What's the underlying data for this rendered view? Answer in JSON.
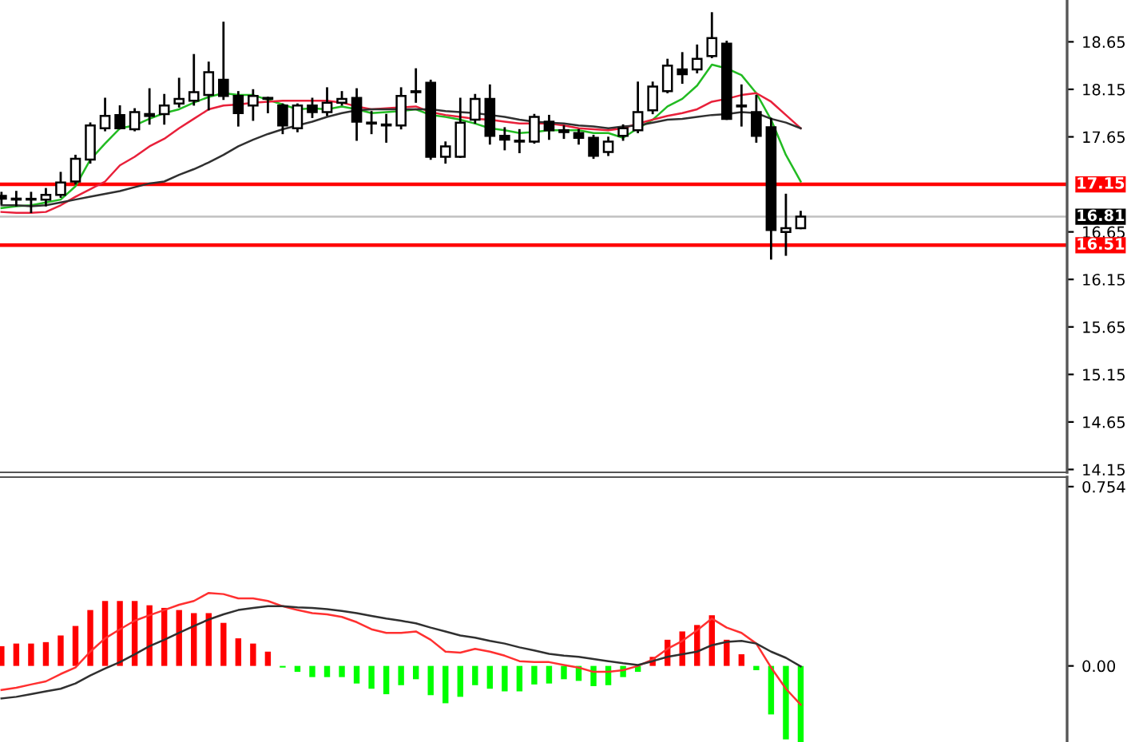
{
  "chart_data": [
    {
      "type": "candlestick",
      "categories": [
        null,
        null,
        null,
        null,
        null,
        null,
        null,
        null,
        null,
        null,
        null,
        null,
        null,
        null,
        null,
        null,
        null,
        null,
        null,
        null,
        null,
        null,
        null,
        null,
        null,
        null,
        null,
        null,
        null,
        null,
        null,
        null,
        null,
        null,
        null,
        null,
        null,
        null,
        null,
        null,
        null,
        null,
        null,
        null,
        null,
        null,
        null,
        null,
        null,
        null,
        null,
        null,
        null,
        null,
        null
      ],
      "ohlc": [
        [
          17.03,
          17.06,
          16.95,
          17.0
        ],
        [
          16.99,
          17.07,
          16.93,
          17.0
        ],
        [
          16.99,
          17.06,
          16.86,
          16.99
        ],
        [
          16.99,
          17.1,
          16.93,
          17.04
        ],
        [
          17.04,
          17.27,
          17.02,
          17.17
        ],
        [
          17.18,
          17.45,
          17.16,
          17.42
        ],
        [
          17.41,
          17.79,
          17.38,
          17.77
        ],
        [
          17.74,
          18.05,
          17.72,
          17.87
        ],
        [
          17.88,
          17.97,
          17.74,
          17.74
        ],
        [
          17.73,
          17.94,
          17.72,
          17.91
        ],
        [
          17.89,
          18.15,
          17.79,
          17.87
        ],
        [
          17.89,
          18.09,
          17.79,
          17.98
        ],
        [
          18.0,
          18.26,
          17.97,
          18.05
        ],
        [
          18.03,
          18.51,
          17.99,
          18.12
        ],
        [
          18.09,
          18.43,
          17.94,
          18.33
        ],
        [
          18.25,
          18.85,
          18.05,
          18.08
        ],
        [
          18.08,
          18.12,
          17.77,
          17.9
        ],
        [
          17.98,
          18.14,
          17.83,
          18.08
        ],
        [
          18.06,
          18.06,
          17.91,
          18.05
        ],
        [
          17.98,
          17.99,
          17.69,
          17.77
        ],
        [
          17.74,
          17.99,
          17.71,
          17.98
        ],
        [
          17.98,
          18.05,
          17.86,
          17.91
        ],
        [
          17.91,
          18.16,
          17.88,
          18.01
        ],
        [
          18.01,
          18.12,
          17.99,
          18.05
        ],
        [
          18.06,
          18.15,
          17.62,
          17.81
        ],
        [
          17.8,
          17.91,
          17.69,
          17.79
        ],
        [
          17.78,
          17.88,
          17.6,
          17.77
        ],
        [
          17.77,
          18.16,
          17.74,
          18.08
        ],
        [
          18.13,
          18.36,
          18.02,
          18.12
        ],
        [
          18.22,
          18.24,
          17.42,
          17.44
        ],
        [
          17.44,
          17.59,
          17.38,
          17.55
        ],
        [
          17.44,
          18.05,
          17.44,
          17.8
        ],
        [
          17.83,
          18.09,
          17.8,
          18.05
        ],
        [
          18.05,
          18.19,
          17.58,
          17.66
        ],
        [
          17.66,
          17.74,
          17.52,
          17.62
        ],
        [
          17.61,
          17.72,
          17.49,
          17.6
        ],
        [
          17.6,
          17.88,
          17.59,
          17.86
        ],
        [
          17.81,
          17.87,
          17.63,
          17.72
        ],
        [
          17.72,
          17.76,
          17.64,
          17.7
        ],
        [
          17.69,
          17.72,
          17.58,
          17.64
        ],
        [
          17.64,
          17.66,
          17.43,
          17.45
        ],
        [
          17.49,
          17.64,
          17.46,
          17.6
        ],
        [
          17.66,
          17.77,
          17.62,
          17.74
        ],
        [
          17.72,
          18.22,
          17.7,
          17.91
        ],
        [
          17.93,
          18.22,
          17.9,
          18.18
        ],
        [
          18.13,
          18.46,
          18.12,
          18.4
        ],
        [
          18.36,
          18.53,
          18.22,
          18.31
        ],
        [
          18.36,
          18.61,
          18.33,
          18.47
        ],
        [
          18.5,
          18.95,
          18.49,
          18.69
        ],
        [
          18.63,
          18.65,
          17.84,
          17.84
        ],
        [
          17.98,
          18.19,
          17.77,
          17.97
        ],
        [
          17.91,
          18.08,
          17.6,
          17.66
        ],
        [
          17.75,
          17.84,
          16.37,
          16.67
        ],
        [
          16.65,
          17.04,
          16.41,
          16.69
        ],
        [
          16.69,
          16.86,
          16.69,
          16.81
        ]
      ],
      "series": [
        {
          "type": "line",
          "color": "#22bb22",
          "values": [
            16.9,
            16.92,
            16.93,
            16.96,
            16.99,
            17.13,
            17.41,
            17.58,
            17.74,
            17.77,
            17.84,
            17.9,
            17.94,
            18.01,
            18.07,
            18.11,
            18.09,
            18.09,
            18.04,
            17.99,
            17.94,
            17.95,
            17.94,
            17.97,
            17.94,
            17.9,
            17.91,
            17.92,
            17.94,
            17.88,
            17.86,
            17.83,
            17.79,
            17.74,
            17.72,
            17.69,
            17.7,
            17.72,
            17.72,
            17.72,
            17.69,
            17.69,
            17.64,
            17.74,
            17.83,
            17.97,
            18.05,
            18.19,
            18.41,
            18.37,
            18.3,
            18.11,
            17.83,
            17.46,
            17.18
          ]
        },
        {
          "type": "line",
          "color": "#e8203a",
          "values": [
            16.86,
            16.85,
            16.85,
            16.86,
            16.93,
            17.02,
            17.1,
            17.18,
            17.35,
            17.44,
            17.55,
            17.63,
            17.74,
            17.84,
            17.94,
            17.98,
            17.99,
            18.01,
            18.02,
            18.03,
            18.03,
            18.03,
            18.03,
            18.01,
            17.97,
            17.94,
            17.95,
            17.96,
            17.97,
            17.91,
            17.88,
            17.86,
            17.84,
            17.83,
            17.81,
            17.79,
            17.79,
            17.79,
            17.77,
            17.74,
            17.73,
            17.72,
            17.74,
            17.79,
            17.83,
            17.87,
            17.9,
            17.94,
            18.02,
            18.05,
            18.09,
            18.11,
            18.02,
            17.88,
            17.74
          ]
        },
        {
          "type": "line",
          "color": "#303030",
          "values": [
            16.93,
            16.93,
            16.92,
            16.93,
            16.96,
            16.99,
            17.02,
            17.05,
            17.08,
            17.12,
            17.16,
            17.18,
            17.25,
            17.31,
            17.38,
            17.46,
            17.55,
            17.62,
            17.68,
            17.73,
            17.77,
            17.81,
            17.86,
            17.9,
            17.93,
            17.94,
            17.94,
            17.94,
            17.94,
            17.94,
            17.92,
            17.91,
            17.9,
            17.88,
            17.86,
            17.83,
            17.81,
            17.8,
            17.79,
            17.77,
            17.76,
            17.74,
            17.76,
            17.77,
            17.8,
            17.83,
            17.84,
            17.86,
            17.88,
            17.89,
            17.91,
            17.9,
            17.84,
            17.8,
            17.74
          ]
        }
      ],
      "ylim": [
        14.12,
        19.09
      ],
      "yticks": [
        14.15,
        14.65,
        15.15,
        15.65,
        16.15,
        16.65,
        17.65,
        18.15,
        18.65
      ],
      "ref_lines": [
        {
          "axis": "y",
          "value": 17.15,
          "label": "17.15",
          "color": "#ff0000"
        },
        {
          "axis": "y",
          "value": 16.81,
          "label": "16.81",
          "color": "#c0c0c0"
        },
        {
          "axis": "y",
          "value": 16.51,
          "label": "16.51",
          "color": "#ff0000"
        }
      ],
      "tick_labels": "y"
    },
    {
      "type": "bar",
      "categories": [
        null,
        null,
        null,
        null,
        null,
        null,
        null,
        null,
        null,
        null,
        null,
        null,
        null,
        null,
        null,
        null,
        null,
        null,
        null,
        null,
        null,
        null,
        null,
        null,
        null,
        null,
        null,
        null,
        null,
        null,
        null,
        null,
        null,
        null,
        null,
        null,
        null,
        null,
        null,
        null,
        null,
        null,
        null,
        null,
        null,
        null,
        null,
        null,
        null,
        null,
        null,
        null,
        null,
        null,
        null
      ],
      "series": [
        {
          "type": "bar",
          "values": [
            0.083,
            0.094,
            0.094,
            0.1,
            0.128,
            0.168,
            0.235,
            0.273,
            0.273,
            0.273,
            0.255,
            0.244,
            0.235,
            0.222,
            0.222,
            0.181,
            0.116,
            0.094,
            0.06,
            -0.007,
            -0.025,
            -0.047,
            -0.047,
            -0.047,
            -0.074,
            -0.096,
            -0.119,
            -0.081,
            -0.056,
            -0.123,
            -0.157,
            -0.13,
            -0.081,
            -0.096,
            -0.107,
            -0.107,
            -0.078,
            -0.074,
            -0.056,
            -0.063,
            -0.085,
            -0.081,
            -0.047,
            -0.025,
            0.038,
            0.11,
            0.145,
            0.172,
            0.213,
            0.11,
            0.049,
            -0.018,
            -0.204,
            -0.309,
            -0.32
          ],
          "colors": [
            "#ff0000",
            "#ff0000",
            "#ff0000",
            "#ff0000",
            "#ff0000",
            "#ff0000",
            "#ff0000",
            "#ff0000",
            "#ff0000",
            "#ff0000",
            "#ff0000",
            "#ff0000",
            "#ff0000",
            "#ff0000",
            "#ff0000",
            "#ff0000",
            "#ff0000",
            "#ff0000",
            "#ff0000",
            "#00ff00",
            "#00ff00",
            "#00ff00",
            "#00ff00",
            "#00ff00",
            "#00ff00",
            "#00ff00",
            "#00ff00",
            "#00ff00",
            "#00ff00",
            "#00ff00",
            "#00ff00",
            "#00ff00",
            "#00ff00",
            "#00ff00",
            "#00ff00",
            "#00ff00",
            "#00ff00",
            "#00ff00",
            "#00ff00",
            "#00ff00",
            "#00ff00",
            "#00ff00",
            "#00ff00",
            "#00ff00",
            "#ff0000",
            "#ff0000",
            "#ff0000",
            "#ff0000",
            "#ff0000",
            "#ff0000",
            "#ff0000",
            "#00ff00",
            "#00ff00",
            "#00ff00",
            "#00ff00"
          ]
        },
        {
          "type": "line",
          "color": "#ff3030",
          "values": [
            -0.101,
            -0.092,
            -0.078,
            -0.065,
            -0.034,
            -0.007,
            0.06,
            0.116,
            0.154,
            0.19,
            0.213,
            0.235,
            0.257,
            0.273,
            0.307,
            0.302,
            0.284,
            0.284,
            0.273,
            0.251,
            0.235,
            0.222,
            0.217,
            0.206,
            0.184,
            0.154,
            0.139,
            0.139,
            0.145,
            0.11,
            0.06,
            0.056,
            0.072,
            0.06,
            0.043,
            0.02,
            0.016,
            0.016,
            0.004,
            -0.007,
            -0.025,
            -0.025,
            -0.018,
            0.0,
            0.027,
            0.072,
            0.105,
            0.15,
            0.199,
            0.161,
            0.139,
            0.094,
            -0.007,
            -0.096,
            -0.163
          ]
        },
        {
          "type": "line",
          "color": "#303030",
          "values": [
            -0.137,
            -0.13,
            -0.119,
            -0.107,
            -0.096,
            -0.074,
            -0.04,
            -0.011,
            0.016,
            0.049,
            0.083,
            0.11,
            0.139,
            0.168,
            0.195,
            0.217,
            0.235,
            0.244,
            0.251,
            0.251,
            0.246,
            0.244,
            0.239,
            0.231,
            0.222,
            0.21,
            0.199,
            0.19,
            0.179,
            0.161,
            0.145,
            0.128,
            0.119,
            0.105,
            0.094,
            0.078,
            0.065,
            0.051,
            0.043,
            0.038,
            0.029,
            0.02,
            0.011,
            0.004,
            0.02,
            0.038,
            0.049,
            0.06,
            0.087,
            0.101,
            0.105,
            0.094,
            0.06,
            0.034,
            -0.002
          ]
        }
      ],
      "ylim": [
        -0.32,
        0.794
      ],
      "yticks": [
        0.754,
        {
          "value": 0.0,
          "label": "0.00"
        }
      ],
      "tick_labels": "y"
    }
  ]
}
